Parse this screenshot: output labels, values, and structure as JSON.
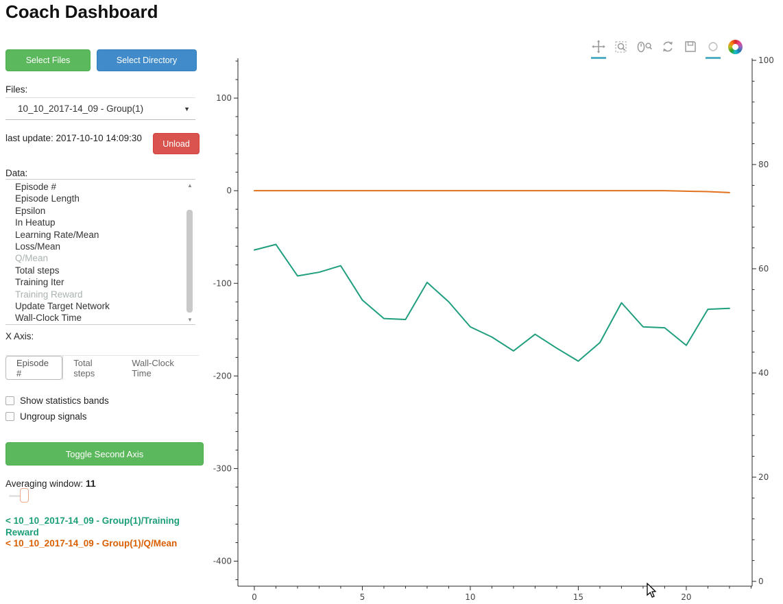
{
  "header": {
    "title": "Coach Dashboard"
  },
  "sidebar": {
    "select_files_label": "Select Files",
    "select_directory_label": "Select Directory",
    "files_label": "Files:",
    "files_selected": "10_10_2017-14_09 - Group(1)",
    "last_update": "last update: 2017-10-10 14:09:30",
    "unload_label": "Unload",
    "data_label": "Data:",
    "data_items": [
      {
        "label": "Episode #",
        "state": ""
      },
      {
        "label": "Episode Length",
        "state": ""
      },
      {
        "label": "Epsilon",
        "state": ""
      },
      {
        "label": "In Heatup",
        "state": ""
      },
      {
        "label": "Learning Rate/Mean",
        "state": ""
      },
      {
        "label": "Loss/Mean",
        "state": ""
      },
      {
        "label": "Q/Mean",
        "state": "dimmed"
      },
      {
        "label": "Total steps",
        "state": ""
      },
      {
        "label": "Training Iter",
        "state": ""
      },
      {
        "label": "Training Reward",
        "state": "dimmed"
      },
      {
        "label": "Update Target Network",
        "state": ""
      },
      {
        "label": "Wall-Clock Time",
        "state": ""
      }
    ],
    "x_axis_label": "X Axis:",
    "x_axis_options": [
      {
        "label": "Episode #",
        "state": "active"
      },
      {
        "label": "Total steps",
        "state": ""
      },
      {
        "label": "Wall-Clock Time",
        "state": ""
      }
    ],
    "checkboxes": [
      {
        "label": "Show statistics bands",
        "checked": false
      },
      {
        "label": "Ungroup signals",
        "checked": false
      }
    ],
    "toggle_second_axis_label": "Toggle Second Axis",
    "averaging_label": "Averaging window:",
    "averaging_value": "11",
    "legend": [
      {
        "text": "< 10_10_2017-14_09 - Group(1)/Training Reward",
        "color": "#1b9e77"
      },
      {
        "text": "< 10_10_2017-14_09 - Group(1)/Q/Mean",
        "color": "#d95f02"
      }
    ]
  },
  "toolbar": {
    "tools": [
      "pan",
      "box-zoom",
      "wheel-zoom",
      "reset",
      "save",
      "hover"
    ],
    "active_tools": [
      "pan",
      "hover"
    ],
    "active_color": "#52aec4"
  },
  "chart_data": {
    "type": "line",
    "x": [
      0,
      1,
      2,
      3,
      4,
      5,
      6,
      7,
      8,
      9,
      10,
      11,
      12,
      13,
      14,
      15,
      16,
      17,
      18,
      19,
      20,
      21,
      22
    ],
    "series": [
      {
        "name": "10_10_2017-14_09 - Group(1)/Training Reward",
        "color": "#1f9e7e",
        "values": [
          -64,
          -58,
          -92,
          -88,
          -81,
          -118,
          -138,
          -139,
          -99,
          -120,
          -147,
          -158,
          -173,
          -155,
          -170,
          -184,
          -164,
          -121,
          -147,
          -148,
          -167,
          -128,
          -127
        ]
      },
      {
        "name": "10_10_2017-14_09 - Group(1)/Q/Mean",
        "color": "#e2711d",
        "values": [
          0,
          0,
          0,
          0,
          0,
          0,
          0,
          0,
          0,
          0,
          0,
          0,
          0,
          0,
          0,
          0,
          0,
          0,
          0,
          0,
          -0.5,
          -1,
          -2
        ]
      }
    ],
    "title": "",
    "xlabel": "",
    "ylabel": "",
    "x_ticks": [
      0,
      5,
      10,
      15,
      20
    ],
    "left_y_ticks": [
      100,
      0,
      -100,
      -200,
      -300,
      -400
    ],
    "right_y_ticks": [
      100,
      80,
      60,
      40,
      20,
      0
    ],
    "xlim": [
      -0.76,
      23.05
    ],
    "left_ylim": [
      -427,
      143
    ],
    "right_ylim": [
      0,
      100
    ],
    "x_minor_step": 1,
    "left_minor_step": 20,
    "right_minor_step": 4,
    "grid": false,
    "legend_position": "sidebar-bottom-left"
  }
}
